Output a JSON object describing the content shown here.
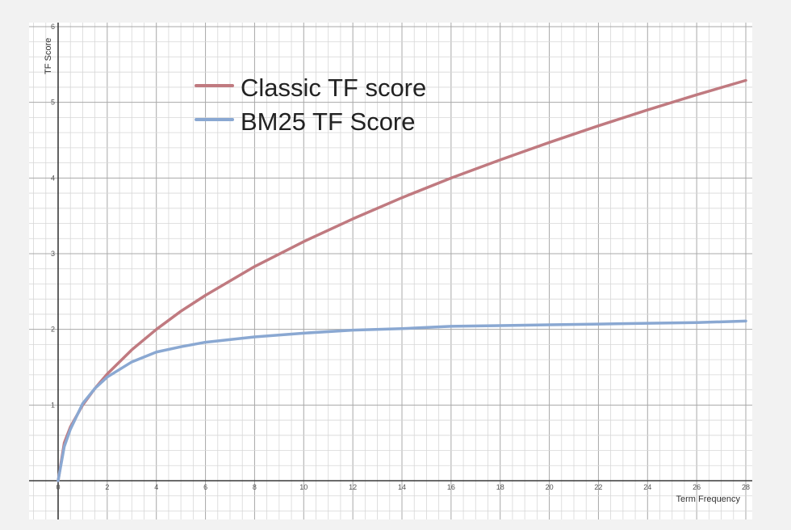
{
  "chart_data": {
    "type": "line",
    "title": "",
    "xlabel": "Term Frequency",
    "ylabel": "TF Score",
    "xlim": [
      -1,
      28
    ],
    "ylim": [
      -0.5,
      6
    ],
    "x_ticks": [
      0,
      2,
      4,
      6,
      8,
      10,
      12,
      14,
      16,
      18,
      20,
      22,
      24,
      26,
      28
    ],
    "y_ticks": [
      1,
      2,
      3,
      4,
      5,
      6
    ],
    "grid": true,
    "legend_position": "top-left",
    "series": [
      {
        "name": "Classic TF score",
        "color": "#c07a80",
        "x": [
          0,
          0.25,
          0.5,
          1,
          1.5,
          2,
          3,
          4,
          5,
          6,
          8,
          10,
          12,
          14,
          16,
          18,
          20,
          22,
          24,
          26,
          28
        ],
        "y": [
          0,
          0.5,
          0.71,
          1,
          1.22,
          1.41,
          1.73,
          2,
          2.24,
          2.45,
          2.83,
          3.16,
          3.46,
          3.74,
          4,
          4.24,
          4.47,
          4.69,
          4.9,
          5.1,
          5.29
        ]
      },
      {
        "name": "BM25 TF Score",
        "color": "#8aa8d2",
        "x": [
          0,
          0.25,
          0.5,
          1,
          1.5,
          2,
          3,
          4,
          5,
          6,
          8,
          10,
          12,
          14,
          16,
          18,
          20,
          22,
          24,
          26,
          28
        ],
        "y": [
          0,
          0.45,
          0.68,
          1.02,
          1.22,
          1.37,
          1.57,
          1.7,
          1.77,
          1.83,
          1.9,
          1.95,
          1.99,
          2.01,
          2.04,
          2.05,
          2.06,
          2.07,
          2.08,
          2.09,
          2.11
        ]
      }
    ]
  }
}
